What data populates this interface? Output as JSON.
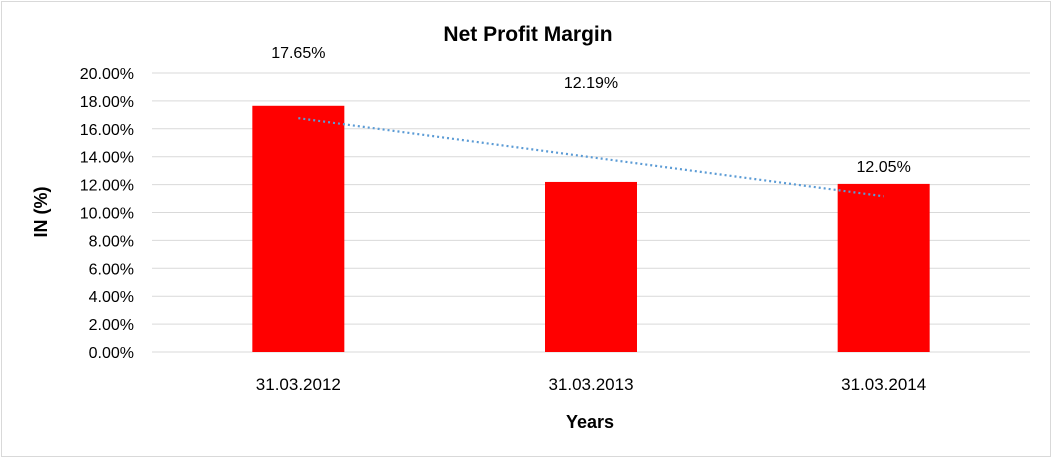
{
  "chart_data": {
    "type": "bar",
    "title": "Net Profit Margin",
    "xlabel": "Years",
    "ylabel": "IN (%)",
    "categories": [
      "31.03.2012",
      "31.03.2013",
      "31.03.2014"
    ],
    "series": [
      {
        "values": [
          17.65,
          12.19,
          12.05
        ],
        "color": "#ff0000"
      }
    ],
    "data_labels": [
      "17.65%",
      "12.19%",
      "12.05%"
    ],
    "ylim": [
      0,
      20
    ],
    "yticks": [
      "0.00%",
      "2.00%",
      "4.00%",
      "6.00%",
      "8.00%",
      "10.00%",
      "12.00%",
      "14.00%",
      "16.00%",
      "18.00%",
      "20.00%"
    ],
    "gridlines": true,
    "trendline": {
      "type": "linear",
      "style": "dotted",
      "color": "#5b9bd5"
    }
  }
}
